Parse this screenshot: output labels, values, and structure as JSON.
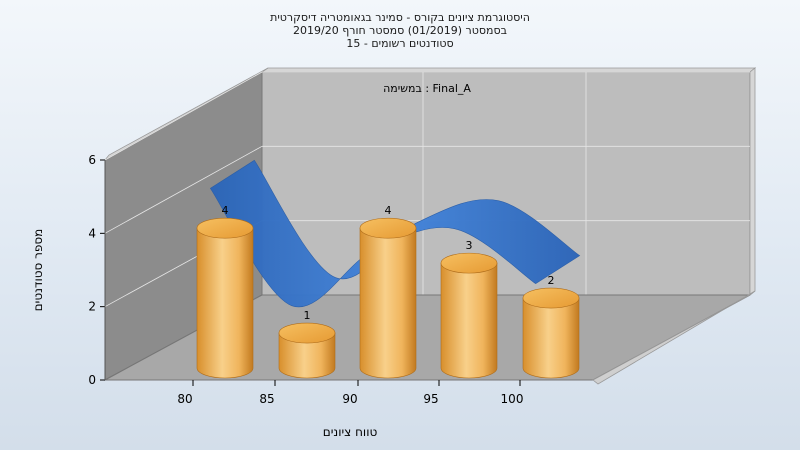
{
  "chart_data": {
    "type": "bar",
    "title_lines": [
      "היסטוגרמת ציונים בקורס - סמינר בגאומטריה דיסקרטית",
      "בסמסטר  (01/2019)  סמסטר חורף 2019/20",
      "סטודנטים רשומים - 15"
    ],
    "annotation": "במשימה : Final_A",
    "xlabel": "טווח ציונים",
    "ylabel": "מספר סטודנטים",
    "x_ticks": [
      "80",
      "85",
      "90",
      "95",
      "100"
    ],
    "y_ticks": [
      "0",
      "2",
      "4",
      "6"
    ],
    "ylim": [
      0,
      6
    ],
    "bars": [
      {
        "x": 80,
        "value": 4,
        "label": "4"
      },
      {
        "x": 85,
        "value": 1,
        "label": "1"
      },
      {
        "x": 90,
        "value": 4,
        "label": "4"
      },
      {
        "x": 95,
        "value": 3,
        "label": "3"
      },
      {
        "x": 100,
        "value": 2,
        "label": "2"
      }
    ],
    "curve": [
      {
        "x": 80,
        "y": 5.5
      },
      {
        "x": 85,
        "y": 2.3
      },
      {
        "x": 90,
        "y": 3.8
      },
      {
        "x": 95,
        "y": 4.4
      },
      {
        "x": 100,
        "y": 2.9
      }
    ],
    "grid": true,
    "colors": {
      "bar": "#e9a447",
      "curve": "#2f6fc4",
      "left_wall": "#8c8c8c",
      "back_wall": "#bdbdbd",
      "floor": "#a8a8a8"
    }
  }
}
